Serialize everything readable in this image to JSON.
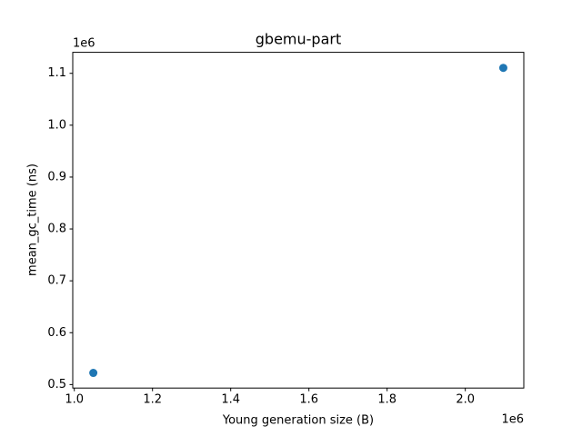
{
  "chart_data": {
    "type": "scatter",
    "title": "gbemu-part",
    "x_label": "Young generation size (B)",
    "y_label": "mean_gc_time (ns)",
    "x_offset_label": "1e6",
    "y_offset_label": "1e6",
    "series": [
      {
        "color": "#1f77b4",
        "x": [
          1.048576,
          2.097152
        ],
        "values": [
          0.5225,
          1.1105
        ]
      }
    ],
    "xlim": [
      0.996,
      2.1496
    ],
    "ylim": [
      0.4933,
      1.1405
    ],
    "xticks": [
      {
        "value": 1,
        "label": "1.0"
      },
      1.2,
      1.4,
      1.6,
      1.8,
      {
        "value": 2,
        "label": "2.0"
      }
    ],
    "yticks": [
      0.5,
      0.6,
      0.7,
      0.8,
      0.9,
      {
        "value": 1,
        "label": "1.0"
      },
      1.1
    ],
    "grid": false
  }
}
